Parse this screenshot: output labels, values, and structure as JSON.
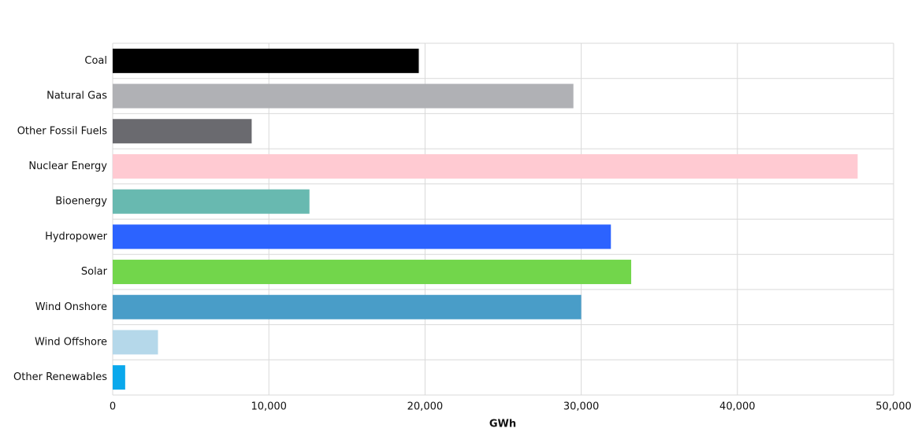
{
  "chart_data": {
    "type": "hbar",
    "xlabel": "GWh",
    "categories": [
      "Coal",
      "Natural Gas",
      "Other Fossil Fuels",
      "Nuclear Energy",
      "Bioenergy",
      "Hydropower",
      "Solar",
      "Wind Onshore",
      "Wind Offshore",
      "Other Renewables"
    ],
    "values": [
      19600,
      29500,
      8900,
      47700,
      12600,
      31900,
      33200,
      30000,
      2900,
      800
    ],
    "colors": [
      "#000000",
      "#b0b1b5",
      "#6a6a6f",
      "#ffcad2",
      "#68b9b0",
      "#2c63ff",
      "#72d64b",
      "#499dc8",
      "#b5d8ea",
      "#0aa8ec"
    ],
    "xlim": [
      0,
      50000
    ],
    "xticks": [
      0,
      {
        "value": 10000,
        "label": "10,000"
      },
      {
        "value": 20000,
        "label": "20,000"
      },
      {
        "value": 30000,
        "label": "30,000"
      },
      {
        "value": 40000,
        "label": "40,000"
      },
      {
        "value": 50000,
        "label": "50,000"
      }
    ],
    "grid": true
  }
}
